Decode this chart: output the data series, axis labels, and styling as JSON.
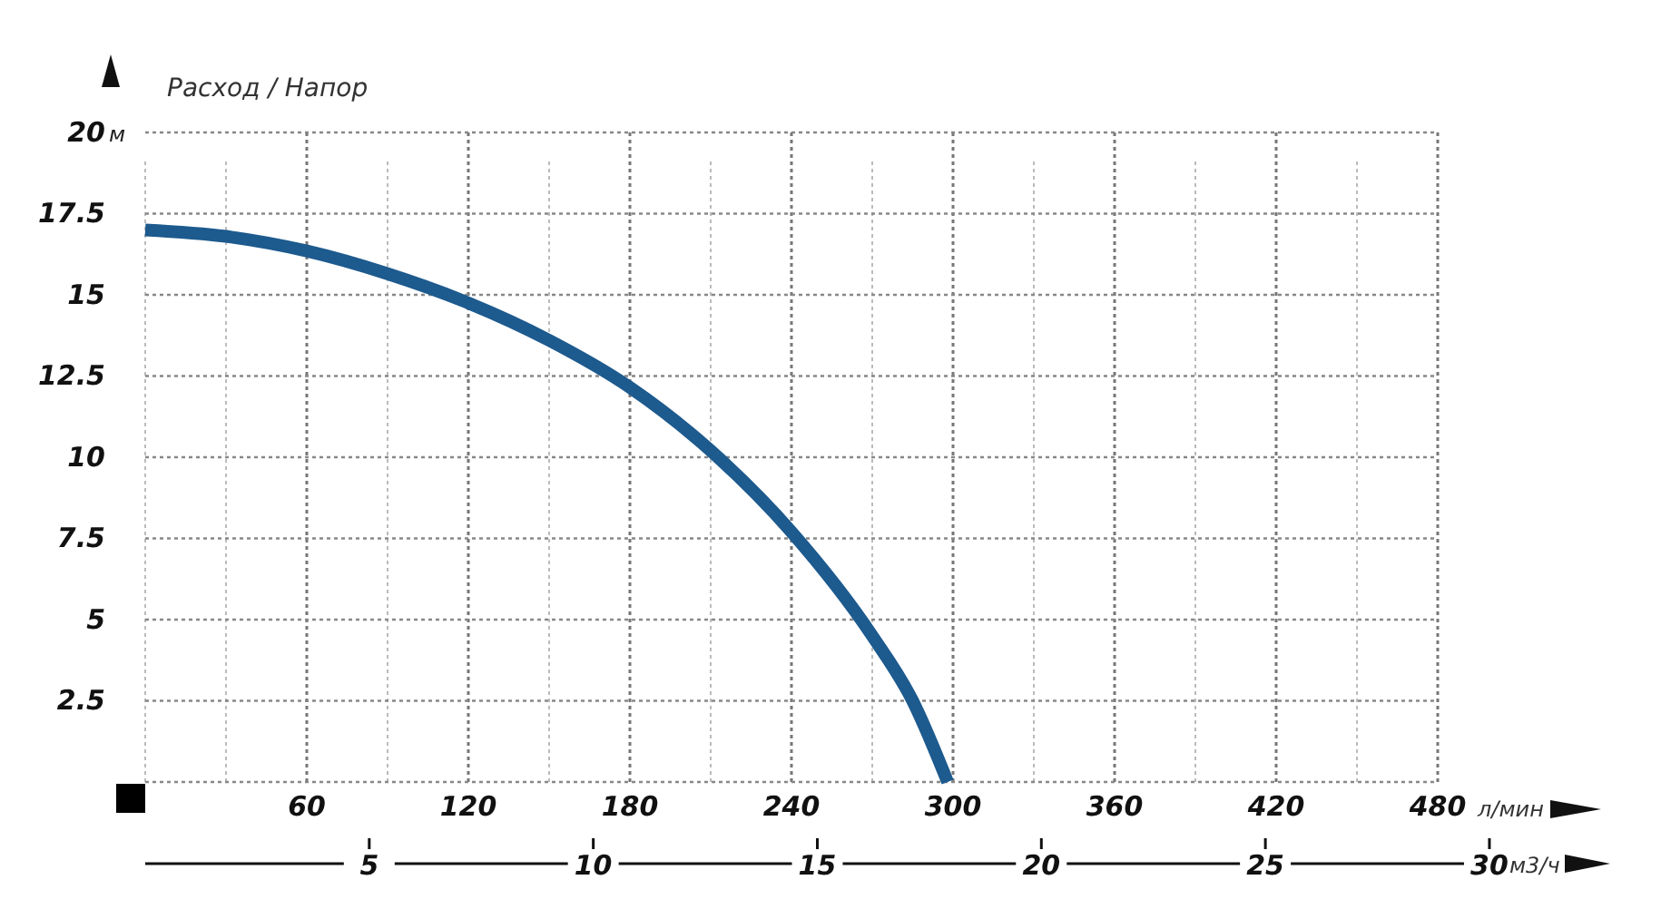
{
  "chart_data": {
    "type": "line",
    "title": "Расход / Напор",
    "ylabel": "м",
    "xlabel": "л/мин",
    "x2label": "м3/ч",
    "series": [
      {
        "color": "#1d5a8e",
        "x": [
          0,
          30,
          60,
          90,
          120,
          150,
          180,
          210,
          240,
          270,
          285,
          298
        ],
        "values": [
          17,
          16.8,
          16.35,
          15.65,
          14.75,
          13.6,
          12.15,
          10.2,
          7.7,
          4.5,
          2.5,
          0
        ]
      }
    ],
    "xlim": [
      0,
      480
    ],
    "xticks": [
      {
        "value": 0,
        "label": null
      },
      {
        "value": 30,
        "label": null
      },
      60,
      {
        "value": 90,
        "label": null
      },
      120,
      {
        "value": 150,
        "label": null
      },
      180,
      {
        "value": 210,
        "label": null
      },
      240,
      {
        "value": 270,
        "label": null
      },
      300,
      {
        "value": 330,
        "label": null
      },
      360,
      {
        "value": 390,
        "label": null
      },
      420,
      {
        "value": 450,
        "label": null
      },
      480
    ],
    "ylim": [
      0,
      20
    ],
    "yticks": [
      {
        "value": 0,
        "label": null
      },
      2.5,
      5,
      7.5,
      10,
      12.5,
      15,
      17.5,
      20
    ],
    "x2lim": [
      0,
      30
    ],
    "x2ticks": [
      5,
      10,
      15,
      20,
      25,
      30
    ],
    "grid": true,
    "marker": "none",
    "line_style": "solid"
  }
}
